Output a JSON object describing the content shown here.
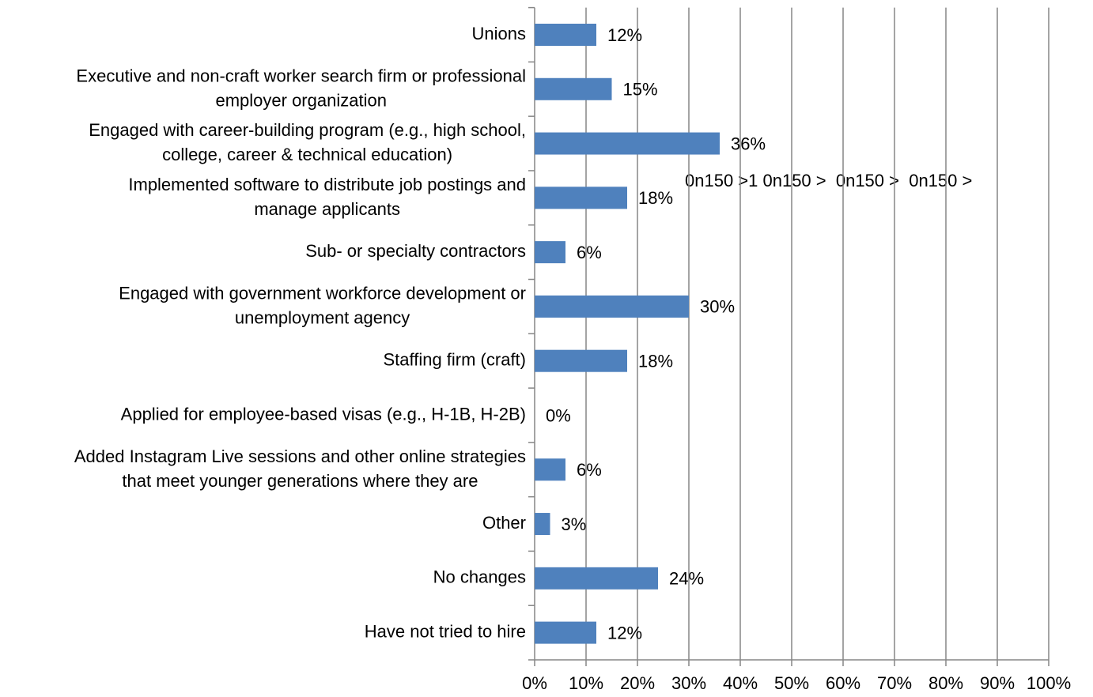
{
  "chart_data": {
    "type": "bar",
    "orientation": "horizontal",
    "categories": [
      "Unions",
      "Executive and non-craft worker search firm or professional\nemployer organization",
      "Engaged with career-building program (e.g., high school,\ncollege, career & technical education)",
      "Implemented software to distribute job postings and\nmanage applicants",
      "Sub- or specialty contractors",
      "Engaged with government workforce development or\nunemployment agency",
      "Staffing firm (craft)",
      "Applied for employee-based visas (e.g., H-1B, H-2B)",
      "Added Instagram Live sessions and other online strategies\nthat meet younger generations where they are",
      "Other",
      "No changes",
      "Have not tried to hire"
    ],
    "values": [
      12,
      15,
      36,
      18,
      6,
      30,
      18,
      0,
      6,
      3,
      24,
      12
    ],
    "value_labels": [
      "12%",
      "15%",
      "36%",
      "18%",
      "6%",
      "30%",
      "18%",
      "0%",
      "6%",
      "3%",
      "24%",
      "12%"
    ],
    "color": "#4f81bd",
    "xlim": [
      0,
      100
    ],
    "xticks": [
      {
        "value": 0,
        "label": "0%"
      },
      {
        "value": 10,
        "label": "10%"
      },
      {
        "value": 20,
        "label": "20%"
      },
      {
        "value": 30,
        "label": "30%"
      },
      {
        "value": 40,
        "label": "40%"
      },
      {
        "value": 50,
        "label": "50%"
      },
      {
        "value": 60,
        "label": "60%"
      },
      {
        "value": 70,
        "label": "70%"
      },
      {
        "value": 80,
        "label": "80%"
      },
      {
        "value": 90,
        "label": "90%"
      },
      {
        "value": 100,
        "label": "100%"
      }
    ],
    "grid": true,
    "annotation": "0n150 >1 0n150 >  0n150 >  0n150 >"
  }
}
